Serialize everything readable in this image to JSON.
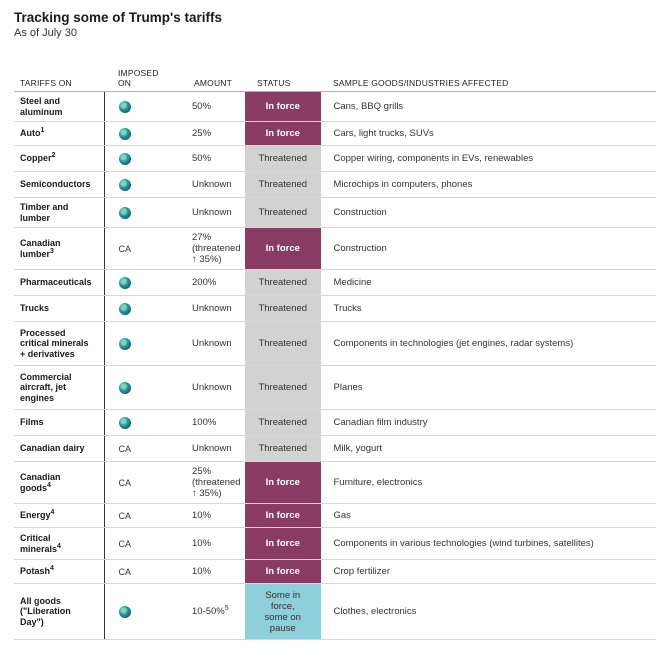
{
  "title": "Tracking some of Trump's tariffs",
  "subtitle": "As of July 30",
  "columns": {
    "tariffs_on": "TARIFFS ON",
    "imposed_on_1": "IMPOSED",
    "imposed_on_2": "ON",
    "amount": "AMOUNT",
    "status": "STATUS",
    "goods": "SAMPLE GOODS/INDUSTRIES AFFECTED"
  },
  "icons": {
    "global": "globe-icon"
  },
  "colors": {
    "in_force": "#8a3b62",
    "threatened": "#d2d2d2",
    "partial": "#8fcfd9"
  },
  "rows": [
    {
      "l1": "Steel and",
      "l2": "aluminum",
      "sup": "",
      "imposed": "",
      "a1": "50%",
      "a2": "",
      "a3": "",
      "asup": "",
      "s1": "In force",
      "s2": "",
      "s3": "",
      "s4": "",
      "goods": "Cans, BBQ grills"
    },
    {
      "l1": "Auto",
      "l2": "",
      "sup": "1",
      "imposed": "",
      "a1": "25%",
      "a2": "",
      "a3": "",
      "asup": "",
      "s1": "In force",
      "s2": "",
      "s3": "",
      "s4": "",
      "goods": "Cars, light trucks, SUVs"
    },
    {
      "l1": "Copper",
      "l2": "",
      "sup": "2",
      "imposed": "",
      "a1": "50%",
      "a2": "",
      "a3": "",
      "asup": "",
      "s1": "Threatened",
      "s2": "",
      "s3": "",
      "s4": "",
      "goods": "Copper wiring, components in EVs, renewables"
    },
    {
      "l1": "Semiconductors",
      "l2": "",
      "sup": "",
      "imposed": "",
      "a1": "Unknown",
      "a2": "",
      "a3": "",
      "asup": "",
      "s1": "Threatened",
      "s2": "",
      "s3": "",
      "s4": "",
      "goods": "Microchips in computers, phones"
    },
    {
      "l1": "Timber and",
      "l2": "lumber",
      "sup": "",
      "imposed": "",
      "a1": "Unknown",
      "a2": "",
      "a3": "",
      "asup": "",
      "s1": "Threatened",
      "s2": "",
      "s3": "",
      "s4": "",
      "goods": "Construction"
    },
    {
      "l1": "Canadian",
      "l2": "lumber",
      "sup": "3",
      "imposed": "CA",
      "a1": "27%",
      "a2": "(threatened",
      "a3": "↑ 35%)",
      "asup": "",
      "s1": "In force",
      "s2": "",
      "s3": "",
      "s4": "",
      "goods": "Construction"
    },
    {
      "l1": "Pharmaceuticals",
      "l2": "",
      "sup": "",
      "imposed": "",
      "a1": "200%",
      "a2": "",
      "a3": "",
      "asup": "",
      "s1": "Threatened",
      "s2": "",
      "s3": "",
      "s4": "",
      "goods": "Medicine"
    },
    {
      "l1": "Trucks",
      "l2": "",
      "sup": "",
      "imposed": "",
      "a1": "Unknown",
      "a2": "",
      "a3": "",
      "asup": "",
      "s1": "Threatened",
      "s2": "",
      "s3": "",
      "s4": "",
      "goods": "Trucks"
    },
    {
      "l1": "Processed",
      "l2": "critical minerals",
      "l3": "+ derivatives",
      "sup": "",
      "imposed": "",
      "a1": "Unknown",
      "a2": "",
      "a3": "",
      "asup": "",
      "s1": "Threatened",
      "s2": "",
      "s3": "",
      "s4": "",
      "goods": "Components in technologies (jet engines, radar systems)"
    },
    {
      "l1": "Commercial",
      "l2": "aircraft, jet",
      "l3": "engines",
      "sup": "",
      "imposed": "",
      "a1": "Unknown",
      "a2": "",
      "a3": "",
      "asup": "",
      "s1": "Threatened",
      "s2": "",
      "s3": "",
      "s4": "",
      "goods": "Planes"
    },
    {
      "l1": "Films",
      "l2": "",
      "sup": "",
      "imposed": "",
      "a1": "100%",
      "a2": "",
      "a3": "",
      "asup": "",
      "s1": "Threatened",
      "s2": "",
      "s3": "",
      "s4": "",
      "goods": "Canadian film industry"
    },
    {
      "l1": "Canadian dairy",
      "l2": "",
      "sup": "",
      "imposed": "CA",
      "a1": "Unknown",
      "a2": "",
      "a3": "",
      "asup": "",
      "s1": "Threatened",
      "s2": "",
      "s3": "",
      "s4": "",
      "goods": "Milk, yogurt"
    },
    {
      "l1": "Canadian",
      "l2": "goods",
      "sup": "4",
      "imposed": "CA",
      "a1": "25%",
      "a2": "(threatened",
      "a3": "↑ 35%)",
      "asup": "",
      "s1": "In force",
      "s2": "",
      "s3": "",
      "s4": "",
      "goods": "Furniture, electronics"
    },
    {
      "l1": "Energy",
      "l2": "",
      "sup": "4",
      "imposed": "CA",
      "a1": "10%",
      "a2": "",
      "a3": "",
      "asup": "",
      "s1": "In force",
      "s2": "",
      "s3": "",
      "s4": "",
      "goods": "Gas"
    },
    {
      "l1": "Critical",
      "l2": "minerals",
      "sup": "4",
      "imposed": "CA",
      "a1": "10%",
      "a2": "",
      "a3": "",
      "asup": "",
      "s1": "In force",
      "s2": "",
      "s3": "",
      "s4": "",
      "goods": "Components in various technologies (wind turbines, satellites)"
    },
    {
      "l1": "Potash",
      "l2": "",
      "sup": "4",
      "imposed": "CA",
      "a1": "10%",
      "a2": "",
      "a3": "",
      "asup": "",
      "s1": "In force",
      "s2": "",
      "s3": "",
      "s4": "",
      "goods": "Crop fertilizer"
    },
    {
      "l1": "All goods",
      "l2": "(\"Liberation",
      "l3": "Day\")",
      "sup": "",
      "imposed": "",
      "a1": "10-50%",
      "a2": "",
      "a3": "",
      "asup": "5",
      "s1": "Some in",
      "s2": "force,",
      "s3": "some on",
      "s4": "pause",
      "goods": "Clothes, electronics"
    }
  ]
}
